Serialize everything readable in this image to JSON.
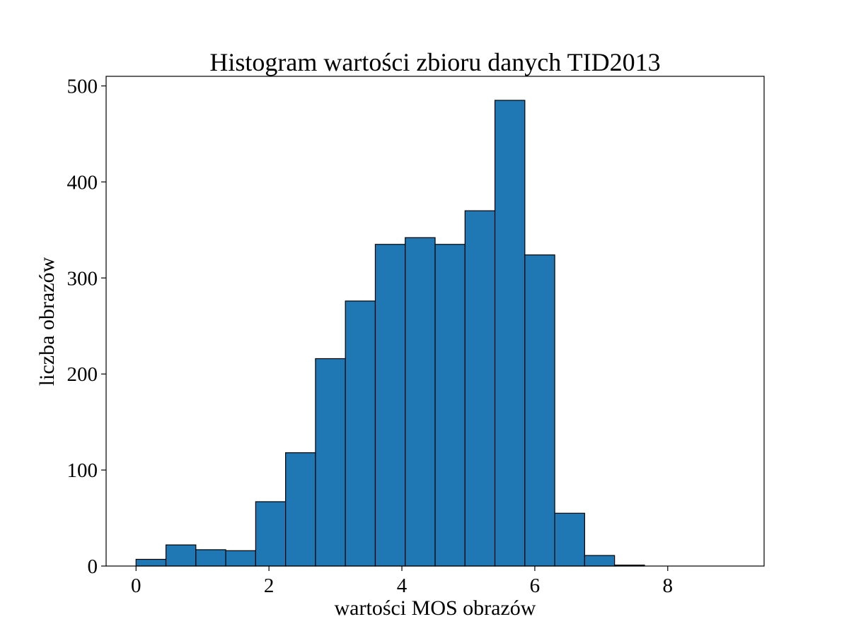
{
  "chart_data": {
    "type": "bar",
    "title": "Histogram wartości zbioru danych TID2013",
    "xlabel": "wartości MOS obrazów",
    "ylabel": "liczba obrazów",
    "bin_edges": [
      0,
      0.45,
      0.9,
      1.35,
      1.8,
      2.25,
      2.7,
      3.15,
      3.6,
      4.05,
      4.5,
      4.95,
      5.4,
      5.85,
      6.3,
      6.75,
      7.2,
      7.65,
      8.1,
      8.55,
      9.0
    ],
    "values": [
      7,
      22,
      17,
      16,
      67,
      118,
      216,
      276,
      335,
      342,
      335,
      370,
      485,
      324,
      55,
      11,
      1,
      0,
      0,
      0
    ],
    "xlim": [
      -0.45,
      9.45
    ],
    "ylim": [
      0,
      510
    ],
    "xticks": [
      0,
      2,
      4,
      6,
      8
    ],
    "yticks": [
      0,
      100,
      200,
      300,
      400,
      500
    ],
    "grid": false,
    "bar_color": "#1f77b4",
    "edge_color": "#000000"
  }
}
